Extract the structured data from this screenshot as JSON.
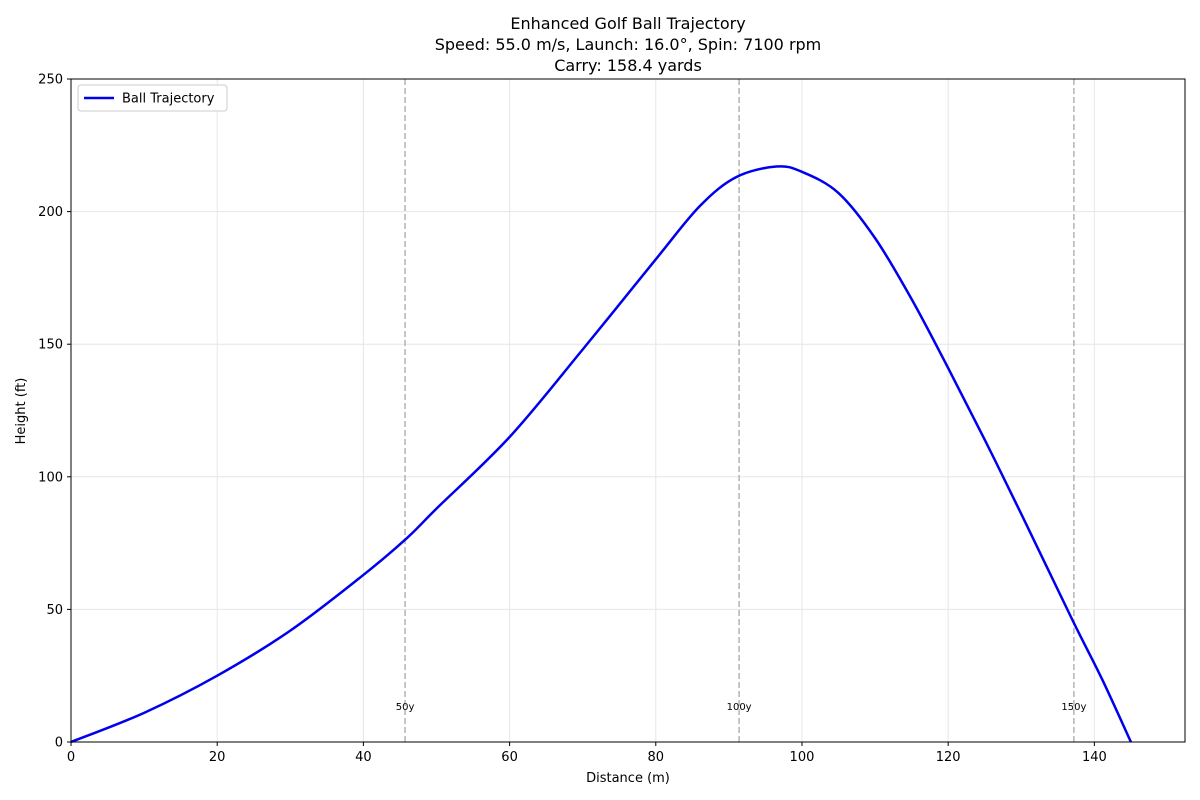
{
  "chart_data": {
    "type": "line",
    "title": [
      "Enhanced Golf Ball Trajectory",
      "Speed: 55.0 m/s, Launch: 16.0°, Spin: 7100 rpm",
      "Carry: 158.4 yards"
    ],
    "xlabel": "Distance (m)",
    "ylabel": "Height (ft)",
    "xlim": [
      0,
      152.4
    ],
    "ylim": [
      0,
      250
    ],
    "xticks": [
      0,
      20,
      40,
      60,
      80,
      100,
      120,
      140
    ],
    "yticks": [
      0,
      50,
      100,
      150,
      200,
      250
    ],
    "grid": true,
    "legend": "upper-left",
    "series": [
      {
        "name": "Ball Trajectory",
        "color": "#0000ee",
        "x": [
          0,
          10,
          20,
          30,
          40,
          46,
          50,
          60,
          70,
          80,
          86,
          91,
          96.5,
          100,
          105,
          110,
          115,
          120,
          125,
          130,
          137,
          141,
          145
        ],
        "y": [
          0,
          11,
          25,
          42,
          63,
          77,
          88,
          115,
          148,
          182,
          202,
          213,
          217,
          215,
          207,
          190,
          167,
          141,
          114,
          86,
          46,
          24,
          0
        ]
      }
    ],
    "annotations": [
      {
        "x": 45.7,
        "label": "50y"
      },
      {
        "x": 91.4,
        "label": "100y"
      },
      {
        "x": 137.2,
        "label": "150y"
      }
    ]
  }
}
